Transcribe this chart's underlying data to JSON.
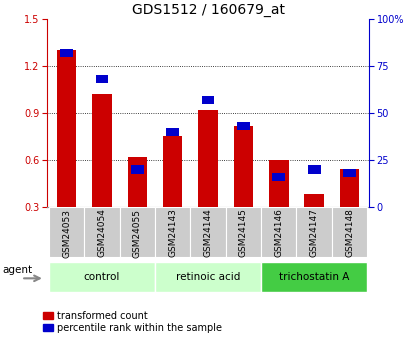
{
  "title": "GDS1512 / 160679_at",
  "samples": [
    "GSM24053",
    "GSM24054",
    "GSM24055",
    "GSM24143",
    "GSM24144",
    "GSM24145",
    "GSM24146",
    "GSM24147",
    "GSM24148"
  ],
  "red_values": [
    1.3,
    1.02,
    0.62,
    0.75,
    0.92,
    0.82,
    0.6,
    0.38,
    0.54
  ],
  "blue_values_pct": [
    82,
    68,
    20,
    40,
    57,
    43,
    16,
    20,
    18
  ],
  "ylim_left": [
    0.3,
    1.5
  ],
  "ylim_right": [
    0,
    100
  ],
  "yticks_left": [
    0.3,
    0.6,
    0.9,
    1.2,
    1.5
  ],
  "yticks_right": [
    0,
    25,
    50,
    75,
    100
  ],
  "ytick_labels_right": [
    "0",
    "25",
    "50",
    "75",
    "100%"
  ],
  "red_color": "#cc0000",
  "blue_color": "#0000cc",
  "groups": [
    {
      "label": "control",
      "indices": [
        0,
        1,
        2
      ],
      "color": "#ccffcc"
    },
    {
      "label": "retinoic acid",
      "indices": [
        3,
        4,
        5
      ],
      "color": "#ccffcc"
    },
    {
      "label": "trichostatin A",
      "indices": [
        6,
        7,
        8
      ],
      "color": "#44cc44"
    }
  ],
  "legend_red": "transformed count",
  "legend_blue": "percentile rank within the sample",
  "agent_label": "agent",
  "bar_width": 0.55,
  "sample_label_color": "#cccccc"
}
